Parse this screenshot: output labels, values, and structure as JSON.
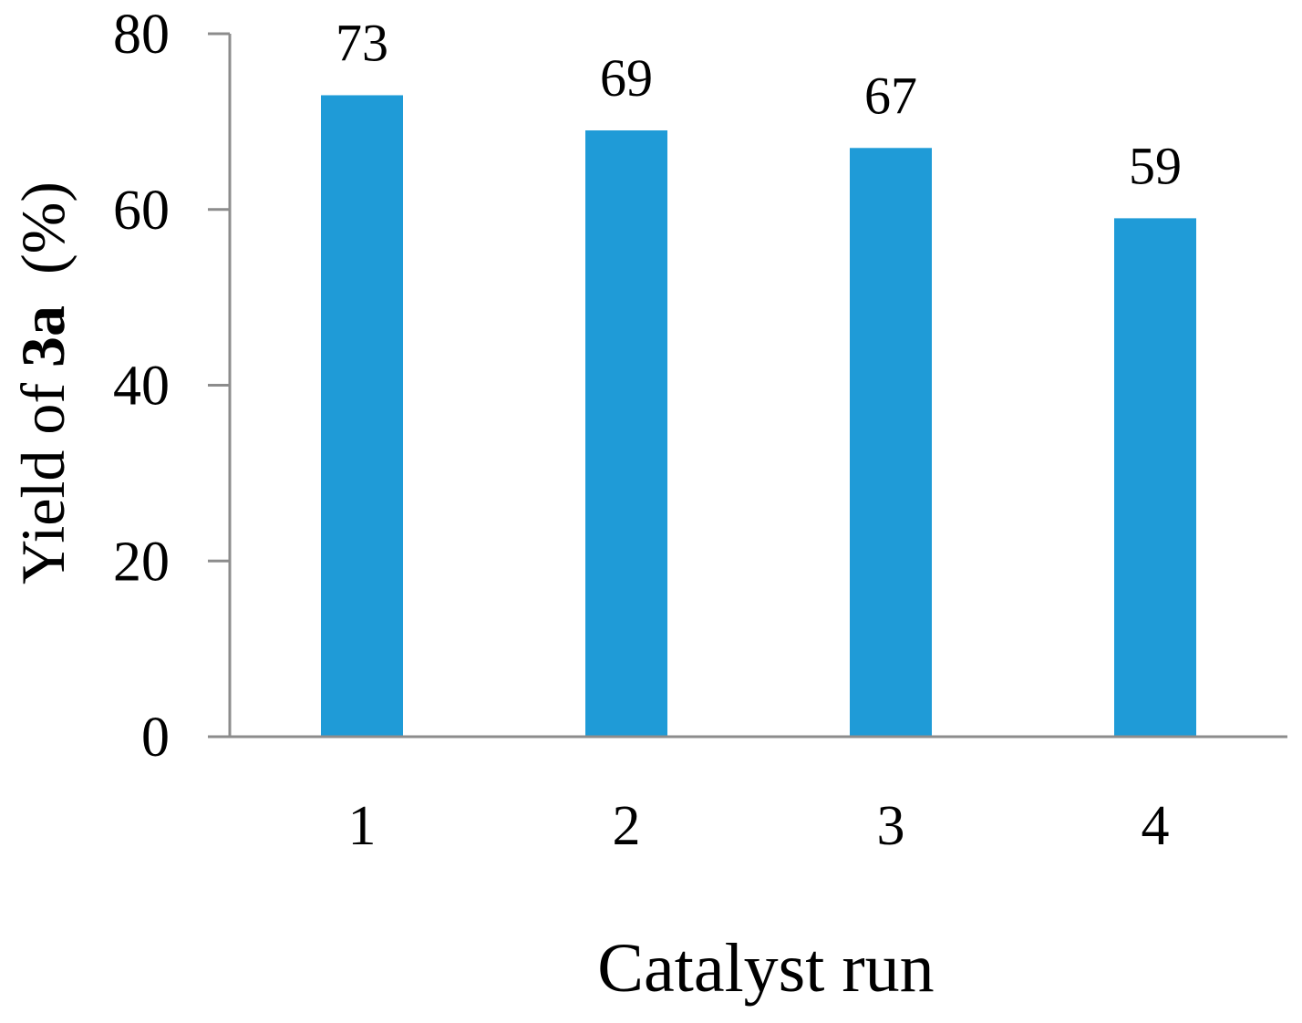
{
  "chart_data": {
    "type": "bar",
    "categories": [
      "1",
      "2",
      "3",
      "4"
    ],
    "values": [
      73,
      69,
      67,
      59
    ],
    "data_labels": [
      "73",
      "69",
      "67",
      "59"
    ],
    "xlabel": "Catalyst run",
    "ylabel": {
      "prefix": "Yield of ",
      "bold": "3a",
      "suffix": "  (%)"
    },
    "ylim": [
      0,
      80
    ],
    "yticks": [
      0,
      20,
      40,
      60,
      80
    ],
    "ytick_labels": [
      "0",
      "20",
      "40",
      "60",
      "80"
    ],
    "grid": false,
    "legend": "none",
    "colors": {
      "bar": "#1f9bd7",
      "axis": "#8c8c8c"
    }
  }
}
